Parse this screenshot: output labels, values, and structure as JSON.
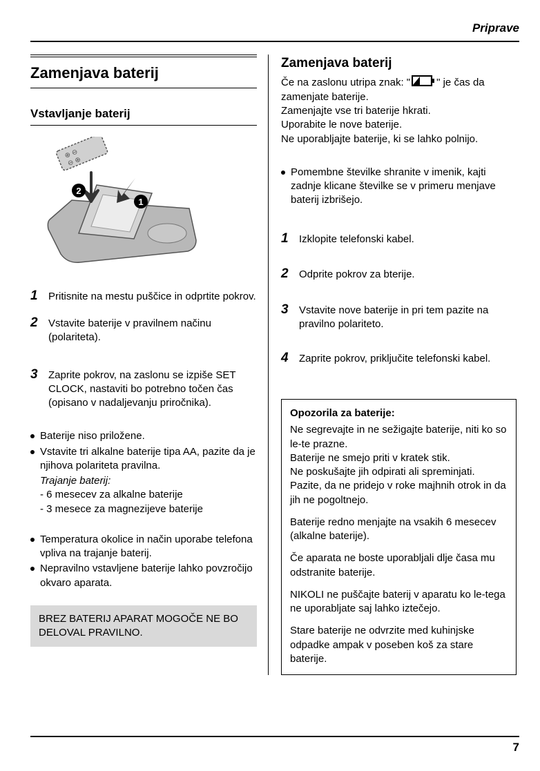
{
  "header": {
    "section_label": "Priprave",
    "page_number": "7"
  },
  "left": {
    "title": "Zamenjava baterij",
    "subtitle": "Vstavljanje baterij",
    "illustration": {
      "marker1": "1",
      "marker2": "2",
      "body_fill": "#b8b8b8",
      "body_stroke": "#555555",
      "lid_fill": "#d4d4d4",
      "screen_fill": "#ececec",
      "batt_fill": "#d0d0d0",
      "arrow_fill": "#333333"
    },
    "steps": [
      {
        "n": "1",
        "t": "Pritisnite na mestu puščice in odprtite pokrov."
      },
      {
        "n": "2",
        "t": "Vstavite baterije v pravilnem načinu (polariteta)."
      },
      {
        "n": "3",
        "t": "Zaprite pokrov, na zaslonu se izpiše SET CLOCK, nastaviti bo potrebno točen čas (opisano v nadaljevanju priročnika)."
      }
    ],
    "bullets1": [
      "Baterije niso priložene.",
      "Vstavite tri alkalne baterije tipa AA, pazite da je njihova polariteta pravilna."
    ],
    "bullets1_sub": {
      "heading": "Trajanje baterij:",
      "items": [
        "- 6 mesecev za alkalne baterije",
        "- 3 mesece za magnezijeve baterije"
      ]
    },
    "bullets2": [
      "Temperatura okolice in način uporabe telefona vpliva na trajanje baterij.",
      "Nepravilno vstavljene baterije lahko povzročijo okvaro aparata."
    ],
    "gray_note": "BREZ BATERIJ  APARAT MOGOČE NE BO DELOVAL PRAVILNO."
  },
  "right": {
    "title": "Zamenjava baterij",
    "intro_pre": "Če na zaslonu utripa znak: \"",
    "intro_post": "\" je čas da zamenjate baterije.",
    "intro_lines": [
      "Zamenjajte vse tri baterije hkrati.",
      "Uporabite le nove baterije.",
      "Ne uporabljajte baterije, ki se lahko polnijo."
    ],
    "bullet": "Pomembne številke shranite v imenik, kajti zadnje klicane številke se v primeru menjave baterij izbrišejo.",
    "steps": [
      {
        "n": "1",
        "t": "Izklopite telefonski kabel."
      },
      {
        "n": "2",
        "t": "Odprite pokrov za bterije."
      },
      {
        "n": "3",
        "t": "Vstavite nove baterije in pri tem pazite na pravilno polariteto."
      },
      {
        "n": "4",
        "t": "Zaprite pokrov, priključite telefonski kabel."
      }
    ],
    "warnings": {
      "title": "Opozorila za baterije:",
      "paras": [
        "Ne segrevajte in ne sežigajte baterije, niti ko so le-te prazne.\nBaterije ne smejo priti v kratek stik.\nNe poskušajte jih odpirati ali spreminjati.\nPazite, da ne pridejo v roke majhnih otrok in da jih ne pogoltnejo.",
        "Baterije redno menjajte na vsakih 6 mesecev (alkalne baterije).",
        "Če aparata ne boste uporabljali dlje časa mu odstranite baterije.",
        "NIKOLI ne puščajte baterij v aparatu ko le-tega ne uporabljate saj lahko iztečejo.",
        "Stare baterije ne odvrzite med kuhinjske odpadke ampak v poseben koš za stare baterije."
      ]
    }
  }
}
